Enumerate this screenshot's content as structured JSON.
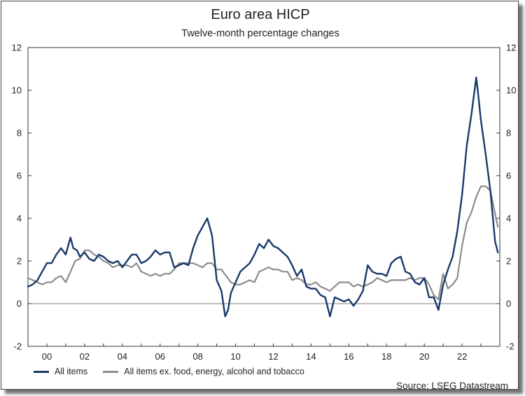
{
  "title": "Euro area HICP",
  "subtitle": "Twelve-month percentage changes",
  "source": "Source: LSEG Datastream",
  "colors": {
    "headline": "#1a3a6b",
    "core": "#8c8c8c"
  },
  "chart_data": {
    "type": "line",
    "title": "Euro area HICP",
    "subtitle": "Twelve-month percentage changes",
    "x_tick_labels": [
      "00",
      "02",
      "04",
      "06",
      "08",
      "10",
      "12",
      "14",
      "16",
      "18",
      "20",
      "22"
    ],
    "x_ticks": [
      2000,
      2002,
      2004,
      2006,
      2008,
      2010,
      2012,
      2014,
      2016,
      2018,
      2020,
      2022
    ],
    "xlim": [
      1999.0,
      2024.0
    ],
    "ylim": [
      -2,
      12
    ],
    "y_ticks": [
      -2,
      0,
      2,
      4,
      6,
      8,
      10,
      12
    ],
    "grid": false,
    "legend_position": "bottom-left",
    "series": [
      {
        "name": "All items",
        "x": [
          1999.0,
          1999.25,
          1999.5,
          1999.75,
          2000.0,
          2000.25,
          2000.5,
          2000.75,
          2001.0,
          2001.25,
          2001.4,
          2001.6,
          2001.75,
          2002.0,
          2002.25,
          2002.5,
          2002.75,
          2003.0,
          2003.25,
          2003.5,
          2003.75,
          2004.0,
          2004.25,
          2004.5,
          2004.75,
          2005.0,
          2005.25,
          2005.5,
          2005.75,
          2006.0,
          2006.25,
          2006.5,
          2006.75,
          2007.0,
          2007.25,
          2007.5,
          2007.75,
          2008.0,
          2008.25,
          2008.5,
          2008.75,
          2009.0,
          2009.25,
          2009.45,
          2009.6,
          2009.75,
          2010.0,
          2010.25,
          2010.5,
          2010.75,
          2011.0,
          2011.25,
          2011.5,
          2011.75,
          2012.0,
          2012.25,
          2012.5,
          2012.75,
          2013.0,
          2013.25,
          2013.5,
          2013.75,
          2014.0,
          2014.25,
          2014.5,
          2014.75,
          2015.0,
          2015.25,
          2015.5,
          2015.75,
          2016.0,
          2016.25,
          2016.5,
          2016.75,
          2017.0,
          2017.25,
          2017.5,
          2017.75,
          2018.0,
          2018.25,
          2018.5,
          2018.75,
          2019.0,
          2019.25,
          2019.5,
          2019.75,
          2020.0,
          2020.25,
          2020.5,
          2020.75,
          2021.0,
          2021.25,
          2021.5,
          2021.75,
          2022.0,
          2022.25,
          2022.5,
          2022.75,
          2022.83,
          2023.0,
          2023.25,
          2023.5,
          2023.75,
          2023.9
        ],
        "values": [
          0.8,
          0.9,
          1.1,
          1.5,
          1.9,
          1.9,
          2.3,
          2.6,
          2.3,
          3.1,
          2.6,
          2.5,
          2.2,
          2.4,
          2.1,
          2.0,
          2.3,
          2.2,
          2.0,
          1.9,
          2.0,
          1.7,
          2.0,
          2.3,
          2.3,
          1.9,
          2.0,
          2.2,
          2.5,
          2.3,
          2.4,
          2.4,
          1.7,
          1.8,
          1.9,
          1.8,
          2.6,
          3.2,
          3.6,
          4.0,
          3.2,
          1.1,
          0.6,
          -0.6,
          -0.3,
          0.5,
          1.0,
          1.5,
          1.7,
          1.9,
          2.3,
          2.8,
          2.6,
          3.0,
          2.7,
          2.6,
          2.4,
          2.2,
          1.8,
          1.3,
          1.6,
          0.8,
          0.7,
          0.7,
          0.4,
          0.3,
          -0.6,
          0.3,
          0.2,
          0.1,
          0.2,
          -0.1,
          0.2,
          0.6,
          1.8,
          1.5,
          1.4,
          1.4,
          1.3,
          1.9,
          2.1,
          2.2,
          1.5,
          1.4,
          1.0,
          0.9,
          1.2,
          0.3,
          0.3,
          -0.3,
          0.9,
          1.6,
          2.2,
          3.4,
          5.1,
          7.4,
          8.9,
          10.6,
          10.0,
          8.6,
          7.0,
          5.3,
          2.9,
          2.4
        ]
      },
      {
        "name": "All items ex. food, energy, alcohol and tobacco",
        "x": [
          1999.0,
          1999.25,
          1999.5,
          1999.75,
          2000.0,
          2000.25,
          2000.5,
          2000.75,
          2001.0,
          2001.25,
          2001.5,
          2001.75,
          2002.0,
          2002.25,
          2002.5,
          2002.75,
          2003.0,
          2003.25,
          2003.5,
          2003.75,
          2004.0,
          2004.25,
          2004.5,
          2004.75,
          2005.0,
          2005.25,
          2005.5,
          2005.75,
          2006.0,
          2006.25,
          2006.5,
          2006.75,
          2007.0,
          2007.25,
          2007.5,
          2007.75,
          2008.0,
          2008.25,
          2008.5,
          2008.75,
          2009.0,
          2009.25,
          2009.5,
          2009.75,
          2010.0,
          2010.25,
          2010.5,
          2010.75,
          2011.0,
          2011.25,
          2011.5,
          2011.75,
          2012.0,
          2012.25,
          2012.5,
          2012.75,
          2013.0,
          2013.25,
          2013.5,
          2013.75,
          2014.0,
          2014.25,
          2014.5,
          2014.75,
          2015.0,
          2015.25,
          2015.5,
          2015.75,
          2016.0,
          2016.25,
          2016.5,
          2016.75,
          2017.0,
          2017.25,
          2017.5,
          2017.75,
          2018.0,
          2018.25,
          2018.5,
          2018.75,
          2019.0,
          2019.25,
          2019.5,
          2019.75,
          2020.0,
          2020.25,
          2020.5,
          2020.75,
          2021.0,
          2021.25,
          2021.5,
          2021.75,
          2022.0,
          2022.25,
          2022.5,
          2022.75,
          2023.0,
          2023.25,
          2023.5,
          2023.75,
          2023.9
        ],
        "values": [
          1.2,
          1.1,
          1.0,
          0.9,
          1.0,
          1.0,
          1.2,
          1.3,
          1.0,
          1.5,
          2.0,
          2.1,
          2.5,
          2.5,
          2.3,
          2.2,
          2.0,
          1.9,
          1.7,
          1.8,
          1.8,
          1.8,
          1.7,
          1.9,
          1.5,
          1.4,
          1.3,
          1.4,
          1.3,
          1.4,
          1.4,
          1.6,
          1.9,
          1.9,
          1.9,
          1.9,
          1.8,
          1.7,
          1.9,
          1.9,
          1.6,
          1.6,
          1.3,
          1.0,
          0.9,
          0.9,
          1.0,
          1.1,
          1.0,
          1.5,
          1.6,
          1.7,
          1.6,
          1.6,
          1.5,
          1.5,
          1.1,
          1.2,
          1.1,
          0.9,
          0.9,
          1.0,
          0.8,
          0.7,
          0.6,
          0.8,
          1.0,
          1.0,
          1.0,
          0.8,
          0.9,
          0.8,
          0.9,
          1.0,
          1.2,
          1.1,
          1.0,
          1.1,
          1.1,
          1.1,
          1.1,
          1.2,
          1.1,
          1.2,
          1.2,
          0.9,
          0.4,
          0.2,
          1.4,
          0.7,
          0.9,
          1.2,
          2.7,
          3.8,
          4.3,
          5.0,
          5.5,
          5.5,
          5.3,
          4.2,
          3.6
        ]
      }
    ]
  }
}
